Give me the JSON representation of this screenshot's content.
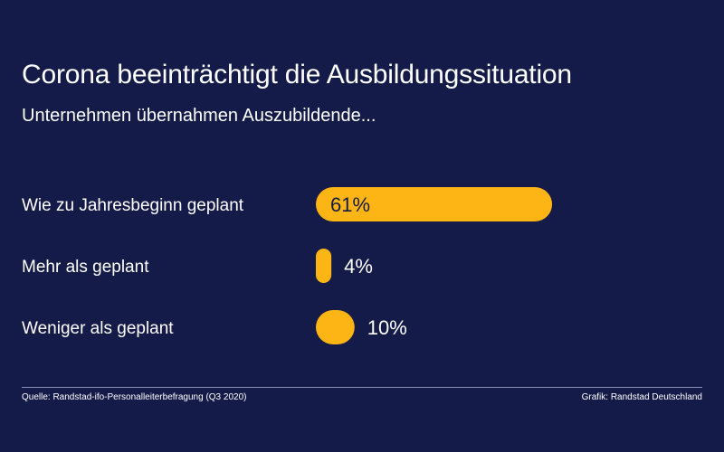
{
  "header": {
    "title": "Corona beeinträchtigt die Ausbildungssituation",
    "subtitle": "Unternehmen übernahmen Auszubildende..."
  },
  "footer": {
    "source": "Quelle: Randstad-ifo-Personalleiterbefragung (Q3 2020)",
    "credit": "Grafik: Randstad Deutschland"
  },
  "colors": {
    "background": "#141b48",
    "bar": "#fdb515",
    "text": "#ffffff"
  },
  "chart_data": {
    "type": "bar",
    "orientation": "horizontal",
    "title": "Corona beeinträchtigt die Ausbildungssituation",
    "subtitle": "Unternehmen übernahmen Auszubildende...",
    "categories": [
      "Wie zu Jahresbeginn geplant",
      "Mehr als geplant",
      "Weniger als geplant"
    ],
    "values": [
      61,
      4,
      10
    ],
    "value_labels": [
      "61%",
      "4%",
      "10%"
    ],
    "unit": "%",
    "xlim": [
      0,
      100
    ],
    "grid": false,
    "legend": "none"
  }
}
